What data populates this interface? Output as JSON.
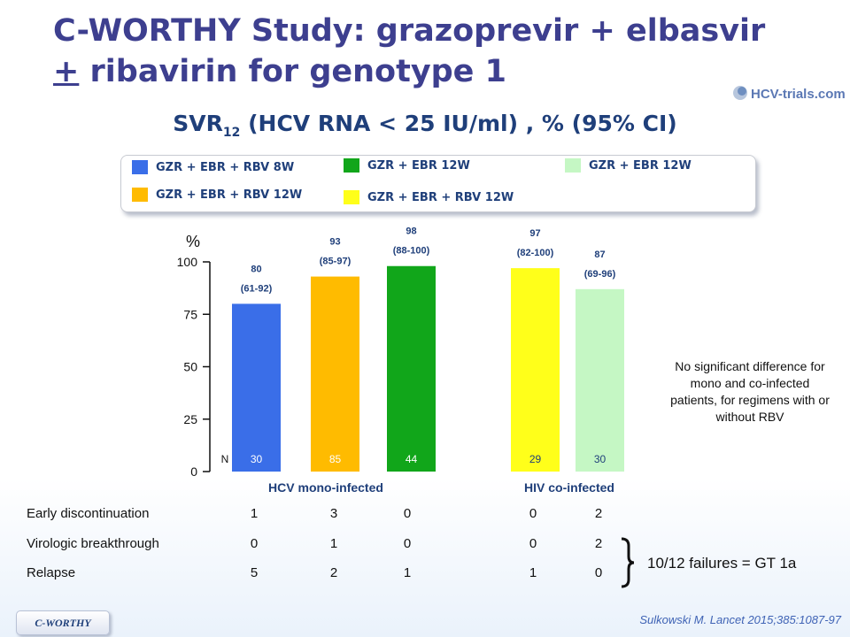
{
  "header": {
    "title_line1": "C-WORTHY Study: grazoprevir + elbasvir",
    "title_pm": "+",
    "title_line2_rest": " ribavirin for genotype 1",
    "logo_text": "HCV-trials.com"
  },
  "chart_title": {
    "main": "SVR",
    "sub": "12",
    "rest": " (HCV RNA < 25 IU/ml) , % (95% CI)"
  },
  "legend": [
    {
      "label": "GZR + EBR + RBV 8W",
      "color": "#3a6ee8"
    },
    {
      "label": "GZR + EBR  + RBV 12W",
      "color": "#ffbb00"
    },
    {
      "label": "GZR + EBR 12W",
      "color": "#11a61a"
    },
    {
      "label": "GZR + EBR + RBV 12W",
      "color": "#ffff1a"
    },
    {
      "label": "GZR + EBR 12W",
      "color": "#c5f7c4"
    }
  ],
  "chart_data": {
    "type": "bar",
    "ylabel": "%",
    "ylim": [
      0,
      100
    ],
    "yticks": [
      0,
      25,
      50,
      75,
      100
    ],
    "n_label": "N",
    "groups": [
      {
        "name": "HCV mono-infected",
        "bar_indices": [
          0,
          1,
          2
        ]
      },
      {
        "name": "HIV co-infected",
        "bar_indices": [
          3,
          4
        ]
      }
    ],
    "bars": [
      {
        "legend_index": 0,
        "value": 80,
        "ci": "(61-92)",
        "n": "30",
        "color": "#3a6ee8",
        "n_color": "#ffffff"
      },
      {
        "legend_index": 1,
        "value": 93,
        "ci": "(85-97)",
        "n": "85",
        "color": "#ffbb00",
        "n_color": "#ffffff"
      },
      {
        "legend_index": 2,
        "value": 98,
        "ci": "(88-100)",
        "n": "44",
        "color": "#11a61a",
        "n_color": "#ffffff"
      },
      {
        "legend_index": 3,
        "value": 97,
        "ci": "(82-100)",
        "n": "29",
        "color": "#ffff1a",
        "n_color": "#1f3f7a"
      },
      {
        "legend_index": 4,
        "value": 87,
        "ci": "(69-96)",
        "n": "30",
        "color": "#c5f7c4",
        "n_color": "#1f3f7a"
      }
    ]
  },
  "note": "No significant difference for mono and co-infected patients, for regimens with or without RBV",
  "table": {
    "rows": [
      {
        "label": "Early discontinuation",
        "values": [
          "1",
          "3",
          "0",
          "0",
          "2"
        ]
      },
      {
        "label": "Virologic breakthrough",
        "values": [
          "0",
          "1",
          "0",
          "0",
          "2"
        ]
      },
      {
        "label": "Relapse",
        "values": [
          "5",
          "2",
          "1",
          "1",
          "0"
        ]
      }
    ]
  },
  "failures_note": "10/12 failures = GT 1a",
  "footer": {
    "tag": "C-WORTHY",
    "citation": "Sulkowski M. Lancet 2015;385:1087-97"
  }
}
